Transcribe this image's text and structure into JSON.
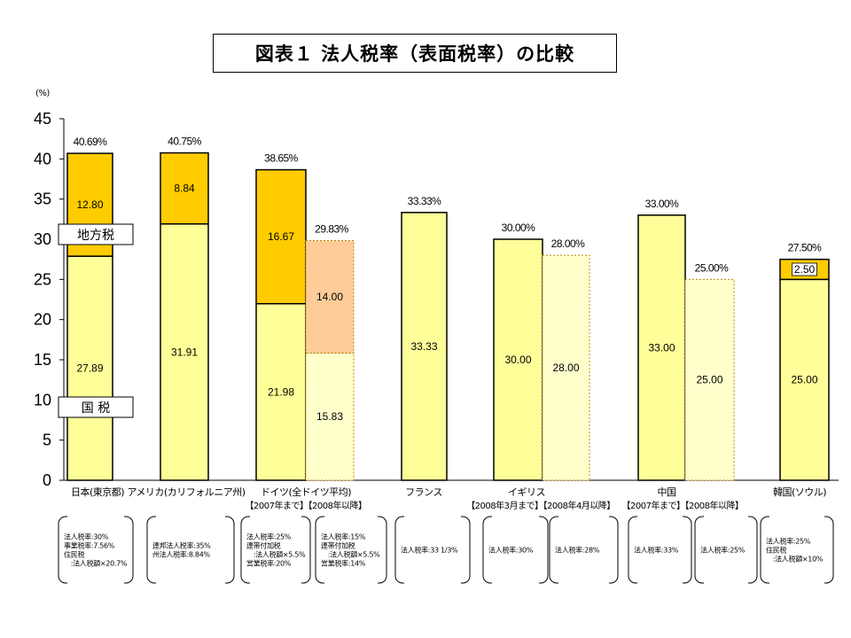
{
  "title": "図表１  法人税率（表面税率）の比較",
  "unit_label": "(%)",
  "labels": {
    "local_tax": "地方税",
    "national_tax": "国  税"
  },
  "chart_data": {
    "type": "bar",
    "ylim": [
      0,
      45
    ],
    "yticks": [
      0,
      5,
      10,
      15,
      20,
      25,
      30,
      35,
      40,
      45
    ],
    "grid": false,
    "colors": {
      "local": "#ffcc00",
      "national": "#ffff99",
      "proposed_local": "#ffcc99",
      "proposed_national": "#ffffcc"
    },
    "groups": [
      {
        "category": "日本(東京都)",
        "subtitle": "",
        "bars": [
          {
            "total_label": "40.69%",
            "national": 27.89,
            "local": 12.8,
            "national_label": "27.89",
            "local_label": "12.80",
            "style": "solid",
            "note": [
              "法人税率:30%",
              "事業税率:7.56%",
              "住民税",
              "　:法人税額×20.7%"
            ]
          }
        ]
      },
      {
        "category": "アメリカ(カリフォルニア州)",
        "subtitle": "",
        "bars": [
          {
            "total_label": "40.75%",
            "national": 31.91,
            "local": 8.84,
            "national_label": "31.91",
            "local_label": "8.84",
            "style": "solid",
            "note": [
              "連邦法人税率:35%",
              "州法人税率:8.84%"
            ]
          }
        ]
      },
      {
        "category": "ドイツ(全ドイツ平均)",
        "subtitle": "【2007年まで】【2008年以降】",
        "bars": [
          {
            "total_label": "38.65%",
            "national": 21.98,
            "local": 16.67,
            "national_label": "21.98",
            "local_label": "16.67",
            "style": "solid",
            "note": [
              "法人税率:25%",
              "連帯付加税",
              "　:法人税額×5.5%",
              "営業税率:20%"
            ]
          },
          {
            "total_label": "29.83%",
            "national": 15.83,
            "local": 14.0,
            "national_label": "15.83",
            "local_label": "14.00",
            "style": "dotted",
            "note": [
              "法人税率:15%",
              "連帯付加税",
              "　:法人税額×5.5%",
              "営業税率:14%"
            ]
          }
        ]
      },
      {
        "category": "フランス",
        "subtitle": "",
        "bars": [
          {
            "total_label": "33.33%",
            "national": 33.33,
            "local": 0,
            "national_label": "33.33",
            "local_label": "",
            "style": "solid",
            "note": [
              "法人税率:33 1/3%"
            ]
          }
        ]
      },
      {
        "category": "イギリス",
        "subtitle": "【2008年3月まで】【2008年4月以降】",
        "bars": [
          {
            "total_label": "30.00%",
            "national": 30.0,
            "local": 0,
            "national_label": "30.00",
            "local_label": "",
            "style": "solid",
            "note": [
              "法人税率:30%"
            ]
          },
          {
            "total_label": "28.00%",
            "national": 28.0,
            "local": 0,
            "national_label": "28.00",
            "local_label": "",
            "style": "dotted",
            "note": [
              "法人税率:28%"
            ]
          }
        ]
      },
      {
        "category": "中国",
        "subtitle": "【2007年まで】【2008年以降】",
        "bars": [
          {
            "total_label": "33.00%",
            "national": 33.0,
            "local": 0,
            "national_label": "33.00",
            "local_label": "",
            "style": "solid",
            "note": [
              "法人税率:33%"
            ]
          },
          {
            "total_label": "25.00%",
            "national": 25.0,
            "local": 0,
            "national_label": "25.00",
            "local_label": "",
            "style": "dotted",
            "note": [
              "法人税率:25%"
            ]
          }
        ]
      },
      {
        "category": "韓国(ソウル)",
        "subtitle": "",
        "bars": [
          {
            "total_label": "27.50%",
            "national": 25.0,
            "local": 2.5,
            "national_label": "25.00",
            "local_label": "2.50",
            "style": "solid",
            "note": [
              "法人税率:25%",
              "住民税",
              "　:法人税額×10%"
            ]
          }
        ]
      }
    ]
  }
}
